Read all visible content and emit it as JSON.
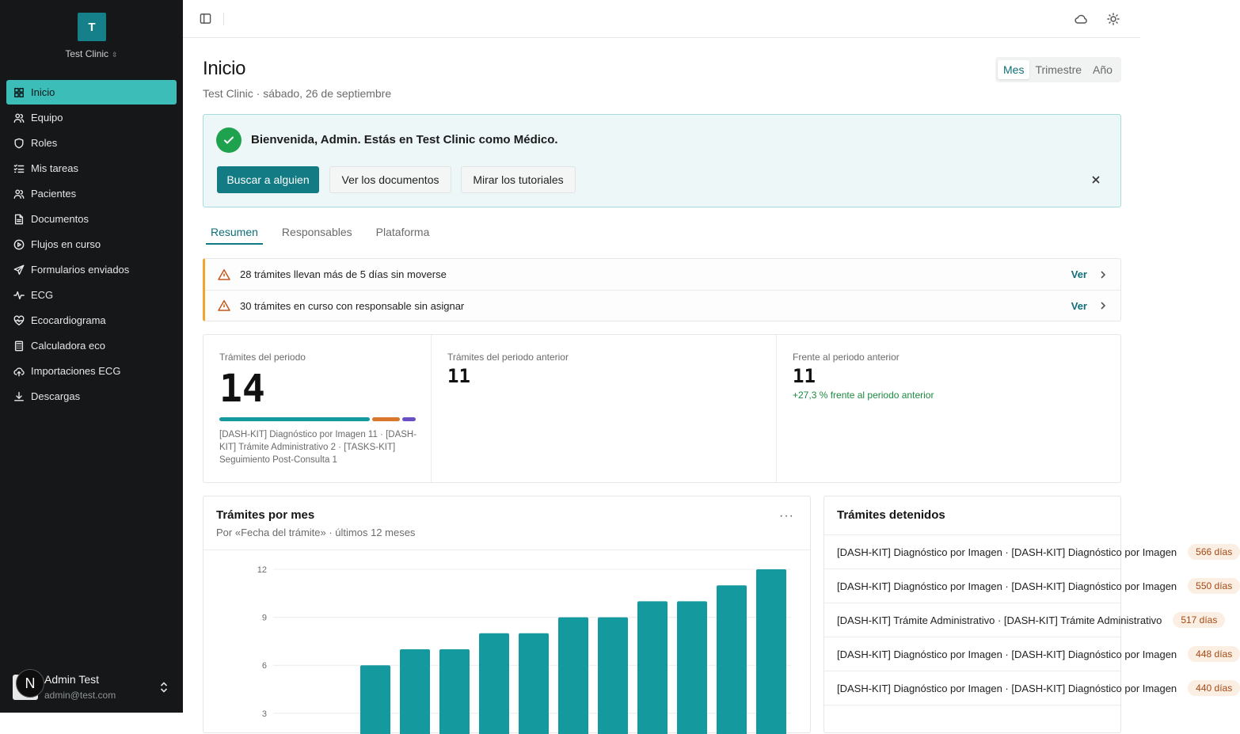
{
  "sidebar": {
    "org_initial": "T",
    "org_name": "Test Clinic",
    "items": [
      {
        "label": "Inicio",
        "icon": "dashboard-icon"
      },
      {
        "label": "Equipo",
        "icon": "users-icon"
      },
      {
        "label": "Roles",
        "icon": "shield-icon"
      },
      {
        "label": "Mis tareas",
        "icon": "task-list-icon"
      },
      {
        "label": "Pacientes",
        "icon": "patients-icon"
      },
      {
        "label": "Documentos",
        "icon": "document-icon"
      },
      {
        "label": "Flujos en curso",
        "icon": "play-circle-icon"
      },
      {
        "label": "Formularios enviados",
        "icon": "send-icon"
      },
      {
        "label": "ECG",
        "icon": "pulse-icon"
      },
      {
        "label": "Ecocardiograma",
        "icon": "heart-icon"
      },
      {
        "label": "Calculadora eco",
        "icon": "calculator-icon"
      },
      {
        "label": "Importaciones ECG",
        "icon": "cloud-upload-icon"
      },
      {
        "label": "Descargas",
        "icon": "download-icon"
      }
    ],
    "user": {
      "initial": "N",
      "name": "Admin Test",
      "email": "admin@test.com"
    }
  },
  "topbar": {
    "icons": [
      "sidebar-toggle-icon",
      "cloud-icon",
      "sun-icon"
    ]
  },
  "header": {
    "title": "Inicio",
    "subtitle": "Test Clinic · sábado, 26 de septiembre",
    "periods": [
      "Mes",
      "Trimestre",
      "Año"
    ],
    "selected_period": "Mes"
  },
  "welcome": {
    "message": "Bienvenida, Admin. Estás en Test Clinic como Médico.",
    "buttons": [
      "Buscar a alguien",
      "Ver los documentos",
      "Mirar los tutoriales"
    ]
  },
  "tabs": [
    "Resumen",
    "Responsables",
    "Plataforma"
  ],
  "alerts": [
    {
      "text": "28 trámites llevan más de 5 días sin moverse",
      "link": "Ver"
    },
    {
      "text": "30 trámites en curso con responsable sin asignar",
      "link": "Ver"
    }
  ],
  "stats": {
    "current": {
      "label": "Trámites del periodo",
      "value": "14",
      "segments": [
        {
          "name": "[DASH-KIT] Diagnóstico por Imagen",
          "count": 11,
          "color": "#14999f"
        },
        {
          "name": "[DASH-KIT] Trámite Administrativo",
          "count": 2,
          "color": "#d9782d"
        },
        {
          "name": "[TASKS-KIT] Seguimiento Post-Consulta",
          "count": 1,
          "color": "#6a4fc4"
        }
      ],
      "breakdown": "[DASH-KIT] Diagnóstico por Imagen 11 · [DASH-KIT] Trámite Administrativo 2 · [TASKS-KIT] Seguimiento Post-Consulta 1"
    },
    "previous": {
      "label": "Trámites del periodo anterior",
      "value": "11"
    },
    "compare": {
      "label": "Frente al periodo anterior",
      "value": "11",
      "delta": "+27,3 % frente al periodo anterior"
    }
  },
  "chart": {
    "title": "Trámites por mes",
    "subtitle": "Por «Fecha del trámite» · últimos 12 meses",
    "more": "···"
  },
  "chart_data": {
    "type": "bar",
    "title": "Trámites por mes",
    "subtitle": "Por «Fecha del trámite» · últimos 12 meses",
    "values": [
      0,
      0,
      6,
      7,
      7,
      8,
      8,
      9,
      9,
      10,
      10,
      11,
      12
    ],
    "yticks": [
      3,
      6,
      9,
      12
    ],
    "ylim": [
      0,
      12
    ],
    "grid": true,
    "bar_color": "#14999f"
  },
  "stalled": {
    "title": "Trámites detenidos",
    "items": [
      {
        "name": "[DASH-KIT] Diagnóstico por Imagen · [DASH-KIT] Diagnóstico por Imagen",
        "days": "566 días"
      },
      {
        "name": "[DASH-KIT] Diagnóstico por Imagen · [DASH-KIT] Diagnóstico por Imagen",
        "days": "550 días"
      },
      {
        "name": "[DASH-KIT] Trámite Administrativo · [DASH-KIT] Trámite Administrativo",
        "days": "517 días"
      },
      {
        "name": "[DASH-KIT] Diagnóstico por Imagen · [DASH-KIT] Diagnóstico por Imagen",
        "days": "448 días"
      },
      {
        "name": "[DASH-KIT] Diagnóstico por Imagen · [DASH-KIT] Diagnóstico por Imagen",
        "days": "440 días"
      }
    ]
  }
}
